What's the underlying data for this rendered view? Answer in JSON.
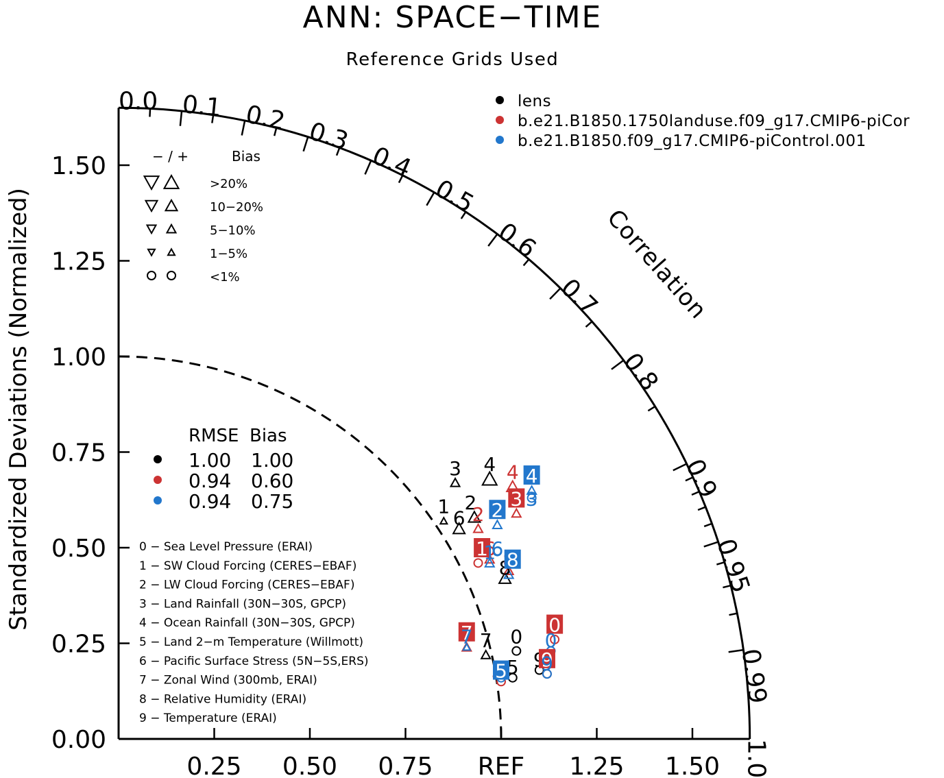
{
  "chart_data": {
    "type": "scatter",
    "subtype": "taylor-diagram",
    "title": "ANN: SPACE−TIME",
    "subtitle": "Reference Grids Used",
    "ylabel": "Standardized Deviations (Normalized)",
    "correlation_label": "Correlation",
    "x_ticks": [
      "0.25",
      "0.50",
      "0.75",
      "REF",
      "1.25",
      "1.50"
    ],
    "x_tick_values": [
      0.25,
      0.5,
      0.75,
      1.0,
      1.25,
      1.5
    ],
    "y_ticks": [
      "0.00",
      "0.25",
      "0.50",
      "0.75",
      "1.00",
      "1.25",
      "1.50"
    ],
    "y_tick_values": [
      0,
      0.25,
      0.5,
      0.75,
      1.0,
      1.25,
      1.5
    ],
    "r_max": 1.65,
    "ref_std": 1.0,
    "corr_labels": [
      {
        "text": "0.0",
        "r": 0.0
      },
      {
        "text": "0.1",
        "r": 0.1
      },
      {
        "text": "0.2",
        "r": 0.2
      },
      {
        "text": "0.3",
        "r": 0.3
      },
      {
        "text": "0.4",
        "r": 0.4
      },
      {
        "text": "0.5",
        "r": 0.5
      },
      {
        "text": "0.6",
        "r": 0.6
      },
      {
        "text": "0.7",
        "r": 0.7
      },
      {
        "text": "0.8",
        "r": 0.8
      },
      {
        "text": "0.9",
        "r": 0.9
      },
      {
        "text": "0.95",
        "r": 0.95
      },
      {
        "text": "0.99",
        "r": 0.99
      },
      {
        "text": "1.0",
        "r": 1.0
      }
    ],
    "corr_minor_ticks": [
      0.05,
      0.15,
      0.25,
      0.35,
      0.45,
      0.55,
      0.65,
      0.75,
      0.85,
      0.91,
      0.92,
      0.93,
      0.94,
      0.96,
      0.97,
      0.98
    ],
    "series": [
      {
        "name": "lens",
        "color": "#000000",
        "rmse": "1.00",
        "bias": "1.00",
        "points": [
          {
            "id": "0",
            "x": 1.04,
            "y": 0.23,
            "marker": "circle",
            "size": "lt1"
          },
          {
            "id": "1",
            "x": 0.85,
            "y": 0.57,
            "marker": "up",
            "size": "s1"
          },
          {
            "id": "2",
            "x": 0.93,
            "y": 0.58,
            "marker": "up",
            "size": "s3"
          },
          {
            "id": "3",
            "x": 0.88,
            "y": 0.67,
            "marker": "up",
            "size": "s2"
          },
          {
            "id": "4",
            "x": 0.97,
            "y": 0.68,
            "marker": "up",
            "size": "s4"
          },
          {
            "id": "5",
            "x": 1.03,
            "y": 0.16,
            "marker": "circle",
            "size": "lt1"
          },
          {
            "id": "6",
            "x": 0.89,
            "y": 0.55,
            "marker": "up",
            "size": "s3"
          },
          {
            "id": "7",
            "x": 0.96,
            "y": 0.22,
            "marker": "up",
            "size": "s2"
          },
          {
            "id": "8",
            "x": 1.01,
            "y": 0.42,
            "marker": "up",
            "size": "s3"
          },
          {
            "id": "9",
            "x": 1.1,
            "y": 0.18,
            "marker": "circle",
            "size": "lt1"
          }
        ]
      },
      {
        "name": "b.e21.B1850.1750landuse.f09_g17.CMIP6-piCor",
        "color": "#cc3333",
        "rmse": "0.94",
        "bias": "0.60",
        "points": [
          {
            "id": "0",
            "x": 1.14,
            "y": 0.26,
            "marker": "circle",
            "size": "lt1"
          },
          {
            "id": "1",
            "x": 0.94,
            "y": 0.46,
            "marker": "circle",
            "size": "lt1"
          },
          {
            "id": "2",
            "x": 0.94,
            "y": 0.55,
            "marker": "up",
            "size": "s2"
          },
          {
            "id": "3",
            "x": 1.04,
            "y": 0.59,
            "marker": "up",
            "size": "s2"
          },
          {
            "id": "4",
            "x": 1.03,
            "y": 0.66,
            "marker": "up",
            "size": "s3"
          },
          {
            "id": "5",
            "x": 1.0,
            "y": 0.15,
            "marker": "circle",
            "size": "lt1"
          },
          {
            "id": "6",
            "x": 0.97,
            "y": 0.47,
            "marker": "up",
            "size": "s2"
          },
          {
            "id": "7",
            "x": 0.91,
            "y": 0.24,
            "marker": "up",
            "size": "s2"
          },
          {
            "id": "8",
            "x": 1.02,
            "y": 0.44,
            "marker": "up",
            "size": "s2"
          },
          {
            "id": "9",
            "x": 1.12,
            "y": 0.17,
            "marker": "circle",
            "size": "lt1"
          }
        ]
      },
      {
        "name": "b.e21.B1850.f09_g17.CMIP6-piControl.001",
        "color": "#2277cc",
        "rmse": "0.94",
        "bias": "0.75",
        "points": [
          {
            "id": "0",
            "x": 1.13,
            "y": 0.23,
            "marker": "circle",
            "size": "lt1"
          },
          {
            "id": "1",
            "x": 0.97,
            "y": 0.46,
            "marker": "up",
            "size": "s2"
          },
          {
            "id": "2",
            "x": 0.99,
            "y": 0.56,
            "marker": "up",
            "size": "s2"
          },
          {
            "id": "3",
            "x": 1.08,
            "y": 0.63,
            "marker": "circle",
            "size": "lt1"
          },
          {
            "id": "4",
            "x": 1.08,
            "y": 0.65,
            "marker": "up",
            "size": "s2"
          },
          {
            "id": "5",
            "x": 1.0,
            "y": 0.16,
            "marker": "circle",
            "size": "lt1"
          },
          {
            "id": "6",
            "x": 0.99,
            "y": 0.49,
            "marker": "circle",
            "size": "lt1"
          },
          {
            "id": "7",
            "x": 0.91,
            "y": 0.24,
            "marker": "up",
            "size": "s1"
          },
          {
            "id": "8",
            "x": 1.02,
            "y": 0.43,
            "marker": "up",
            "size": "s2"
          },
          {
            "id": "9",
            "x": 1.12,
            "y": 0.17,
            "marker": "circle",
            "size": "lt1"
          }
        ]
      }
    ],
    "labels": [
      {
        "series": 0,
        "id": "0",
        "x": 1.04,
        "y": 0.27,
        "boxed": false
      },
      {
        "series": 0,
        "id": "1",
        "x": 0.85,
        "y": 0.61,
        "boxed": false
      },
      {
        "series": 0,
        "id": "2",
        "x": 0.92,
        "y": 0.62,
        "boxed": false
      },
      {
        "series": 0,
        "id": "3",
        "x": 0.88,
        "y": 0.71,
        "boxed": false
      },
      {
        "series": 0,
        "id": "4",
        "x": 0.97,
        "y": 0.72,
        "boxed": false
      },
      {
        "series": 0,
        "id": "5",
        "x": 1.03,
        "y": 0.19,
        "boxed": false
      },
      {
        "series": 0,
        "id": "6",
        "x": 0.89,
        "y": 0.58,
        "boxed": false
      },
      {
        "series": 0,
        "id": "7",
        "x": 0.96,
        "y": 0.26,
        "boxed": false
      },
      {
        "series": 0,
        "id": "8",
        "x": 1.01,
        "y": 0.45,
        "boxed": false
      },
      {
        "series": 0,
        "id": "9",
        "x": 1.1,
        "y": 0.21,
        "boxed": false
      },
      {
        "series": 1,
        "id": "0",
        "x": 1.14,
        "y": 0.3,
        "boxed": true
      },
      {
        "series": 1,
        "id": "1",
        "x": 0.95,
        "y": 0.5,
        "boxed": true
      },
      {
        "series": 1,
        "id": "2",
        "x": 0.94,
        "y": 0.59,
        "boxed": false
      },
      {
        "series": 1,
        "id": "3",
        "x": 1.04,
        "y": 0.63,
        "boxed": true
      },
      {
        "series": 1,
        "id": "4",
        "x": 1.03,
        "y": 0.7,
        "boxed": false
      },
      {
        "series": 1,
        "id": "5",
        "x": 0.99,
        "y": 0.18,
        "boxed": false
      },
      {
        "series": 1,
        "id": "6",
        "x": 0.97,
        "y": 0.5,
        "boxed": false
      },
      {
        "series": 1,
        "id": "7",
        "x": 0.91,
        "y": 0.28,
        "boxed": true
      },
      {
        "series": 1,
        "id": "8",
        "x": 1.02,
        "y": 0.47,
        "boxed": false
      },
      {
        "series": 1,
        "id": "9",
        "x": 1.12,
        "y": 0.21,
        "boxed": true
      },
      {
        "series": 2,
        "id": "0",
        "x": 1.13,
        "y": 0.26,
        "boxed": false
      },
      {
        "series": 2,
        "id": "1",
        "x": 0.97,
        "y": 0.49,
        "boxed": false
      },
      {
        "series": 2,
        "id": "2",
        "x": 0.99,
        "y": 0.6,
        "boxed": true
      },
      {
        "series": 2,
        "id": "3",
        "x": 1.08,
        "y": 0.63,
        "boxed": false
      },
      {
        "series": 2,
        "id": "4",
        "x": 1.08,
        "y": 0.69,
        "boxed": true
      },
      {
        "series": 2,
        "id": "5",
        "x": 1.0,
        "y": 0.18,
        "boxed": true
      },
      {
        "series": 2,
        "id": "6",
        "x": 0.99,
        "y": 0.5,
        "boxed": false
      },
      {
        "series": 2,
        "id": "7",
        "x": 0.91,
        "y": 0.27,
        "boxed": false
      },
      {
        "series": 2,
        "id": "8",
        "x": 1.03,
        "y": 0.47,
        "boxed": true
      },
      {
        "series": 2,
        "id": "9",
        "x": 1.12,
        "y": 0.2,
        "boxed": false
      }
    ],
    "bias_legend": {
      "header_symbols": "− / +",
      "header_title": "Bias",
      "rows": [
        {
          "label": ">20%",
          "size": "s4",
          "shape": "triangle"
        },
        {
          "label": "10−20%",
          "size": "s3",
          "shape": "triangle"
        },
        {
          "label": "5−10%",
          "size": "s2",
          "shape": "triangle"
        },
        {
          "label": "1−5%",
          "size": "s1",
          "shape": "triangle"
        },
        {
          "label": "<1%",
          "size": "lt1",
          "shape": "circle"
        }
      ]
    },
    "stats_legend": {
      "rmse_title": "RMSE",
      "bias_title": "Bias"
    },
    "variables": [
      "0 − Sea Level Pressure (ERAI)",
      "1 − SW Cloud Forcing (CERES−EBAF)",
      "2 − LW Cloud Forcing (CERES−EBAF)",
      "3 − Land Rainfall (30N−30S, GPCP)",
      "4 − Ocean Rainfall (30N−30S, GPCP)",
      "5 − Land 2−m Temperature (Willmott)",
      "6 − Pacific Surface Stress (5N−5S,ERS)",
      "7 − Zonal Wind (300mb, ERAI)",
      "8 − Relative Humidity (ERAI)",
      "9 − Temperature (ERAI)"
    ]
  }
}
